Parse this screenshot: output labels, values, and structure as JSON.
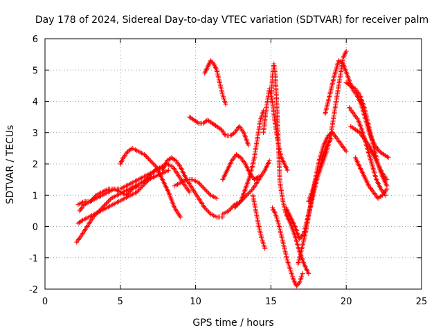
{
  "chart_data": {
    "type": "scatter",
    "title": "Day 178 of 2024, Sidereal Day-to-day VTEC variation (SDTVAR) for receiver palm",
    "xlabel": "GPS time / hours",
    "ylabel": "SDTVAR / TECUs",
    "xlim": [
      0,
      25
    ],
    "ylim": [
      -2,
      6
    ],
    "x_ticks": [
      "0",
      "5",
      "10",
      "15",
      "20",
      "25"
    ],
    "y_ticks": [
      "-2",
      "-1",
      "0",
      "1",
      "2",
      "3",
      "4",
      "5",
      "6"
    ],
    "grid": true,
    "marker": "+",
    "color": "#ff0000",
    "series": [
      {
        "x": [
          2.1,
          2.4,
          2.8,
          3.2,
          3.6,
          4.0,
          4.4,
          4.8,
          5.2,
          5.6,
          6.0,
          6.4,
          6.8,
          7.2
        ],
        "y": [
          -0.5,
          -0.3,
          0.0,
          0.3,
          0.5,
          0.7,
          0.9,
          1.0,
          1.1,
          1.2,
          1.3,
          1.4,
          1.5,
          1.6
        ]
      },
      {
        "x": [
          2.2,
          2.5,
          2.9,
          3.3,
          3.7,
          4.1,
          4.5,
          4.9,
          5.3,
          5.7,
          6.1,
          6.5,
          6.9,
          7.3,
          7.8,
          8.2
        ],
        "y": [
          0.1,
          0.2,
          0.3,
          0.4,
          0.5,
          0.6,
          0.7,
          0.8,
          0.9,
          1.0,
          1.1,
          1.3,
          1.5,
          1.6,
          1.7,
          1.8
        ]
      },
      {
        "x": [
          2.3,
          2.6,
          3.0,
          3.4,
          3.8,
          4.2,
          4.6,
          5.0,
          5.4,
          5.8,
          6.2,
          6.6,
          7.0,
          7.4,
          7.8
        ],
        "y": [
          0.5,
          0.7,
          0.8,
          0.9,
          1.0,
          1.1,
          1.2,
          1.2,
          1.3,
          1.4,
          1.5,
          1.6,
          1.7,
          1.8,
          1.9
        ]
      },
      {
        "x": [
          2.2,
          2.6,
          3.0,
          3.4,
          3.8,
          4.2,
          4.6,
          5.0,
          5.4,
          5.8,
          6.2
        ],
        "y": [
          0.7,
          0.8,
          0.8,
          1.0,
          1.1,
          1.2,
          1.2,
          1.1,
          1.0,
          1.2,
          1.3
        ]
      },
      {
        "x": [
          5.0,
          5.2,
          5.5,
          5.8,
          6.2,
          6.6,
          7.0,
          7.4,
          7.8,
          8.2,
          8.6,
          9.0
        ],
        "y": [
          2.0,
          2.2,
          2.4,
          2.5,
          2.4,
          2.3,
          2.1,
          1.9,
          1.5,
          1.1,
          0.6,
          0.3
        ]
      },
      {
        "x": [
          6.5,
          6.9,
          7.3,
          7.7,
          8.1,
          8.5,
          8.9,
          9.3,
          9.6
        ],
        "y": [
          1.4,
          1.6,
          1.8,
          1.9,
          2.0,
          1.9,
          1.6,
          1.3,
          1.1
        ]
      },
      {
        "x": [
          7.8,
          8.1,
          8.4,
          8.7,
          9.0,
          9.4,
          9.8,
          10.2,
          10.6,
          11.0,
          11.4,
          11.8
        ],
        "y": [
          1.8,
          2.1,
          2.2,
          2.1,
          1.9,
          1.5,
          1.2,
          0.9,
          0.6,
          0.4,
          0.3,
          0.3
        ]
      },
      {
        "x": [
          8.6,
          9.0,
          9.4,
          9.8,
          10.2,
          10.6,
          11.0,
          11.4
        ],
        "y": [
          1.3,
          1.4,
          1.5,
          1.5,
          1.4,
          1.2,
          1.0,
          0.9
        ]
      },
      {
        "x": [
          9.6,
          9.9,
          10.2,
          10.5,
          10.8,
          11.1,
          11.4,
          11.7,
          12.0,
          12.3,
          12.6,
          12.9,
          13.2,
          13.5
        ],
        "y": [
          3.5,
          3.4,
          3.3,
          3.3,
          3.4,
          3.3,
          3.2,
          3.1,
          2.9,
          2.9,
          3.0,
          3.2,
          3.0,
          2.6
        ]
      },
      {
        "x": [
          10.6,
          10.8,
          11.0,
          11.2,
          11.4,
          11.6,
          11.8,
          12.0
        ],
        "y": [
          4.9,
          5.1,
          5.3,
          5.2,
          5.0,
          4.6,
          4.2,
          3.9
        ]
      },
      {
        "x": [
          11.8,
          12.2,
          12.6,
          13.0,
          13.4,
          13.8,
          14.2,
          14.6,
          14.9
        ],
        "y": [
          0.4,
          0.5,
          0.7,
          0.8,
          1.0,
          1.2,
          1.5,
          1.8,
          2.1
        ]
      },
      {
        "x": [
          11.8,
          12.1,
          12.4,
          12.7,
          13.0,
          13.3,
          13.6,
          13.9,
          14.2
        ],
        "y": [
          1.5,
          1.8,
          2.1,
          2.3,
          2.2,
          2.0,
          1.7,
          1.5,
          1.6
        ]
      },
      {
        "x": [
          12.6,
          13.0,
          13.3,
          13.6,
          13.9,
          14.1,
          14.3,
          14.5
        ],
        "y": [
          0.6,
          0.8,
          1.2,
          1.6,
          2.2,
          2.8,
          3.4,
          3.7
        ]
      },
      {
        "x": [
          13.8,
          14.0,
          14.2,
          14.4,
          14.6
        ],
        "y": [
          1.0,
          0.5,
          0.0,
          -0.4,
          -0.7
        ]
      },
      {
        "x": [
          14.5,
          14.7,
          14.9,
          15.1,
          15.3,
          15.5,
          15.7,
          15.9,
          16.1
        ],
        "y": [
          3.0,
          3.8,
          4.4,
          4.0,
          3.2,
          2.6,
          2.2,
          2.0,
          1.8
        ]
      },
      {
        "x": [
          15.0,
          15.1,
          15.2,
          15.3,
          15.4,
          15.5,
          15.6,
          15.8,
          16.0,
          16.3,
          16.6,
          16.9,
          17.2,
          17.5
        ],
        "y": [
          4.0,
          4.8,
          5.2,
          4.8,
          3.8,
          2.6,
          1.4,
          0.8,
          0.4,
          0.1,
          -0.3,
          -0.8,
          -1.2,
          -1.5
        ]
      },
      {
        "x": [
          15.1,
          15.3,
          15.5,
          15.7,
          15.9,
          16.1,
          16.3,
          16.5,
          16.7,
          16.9,
          17.1
        ],
        "y": [
          0.6,
          0.4,
          0.1,
          -0.3,
          -0.7,
          -1.1,
          -1.4,
          -1.7,
          -1.9,
          -1.8,
          -1.5
        ]
      },
      {
        "x": [
          16.0,
          16.3,
          16.6,
          16.9,
          17.2,
          17.5,
          17.8,
          18.1,
          18.4,
          18.7,
          19.0
        ],
        "y": [
          0.6,
          0.3,
          0.0,
          -0.4,
          -0.2,
          0.4,
          1.0,
          1.6,
          2.2,
          2.6,
          2.8
        ]
      },
      {
        "x": [
          16.8,
          17.0,
          17.3,
          17.6,
          17.9,
          18.2,
          18.5,
          18.8,
          19.1,
          19.4,
          19.7,
          20.0
        ],
        "y": [
          -1.2,
          -0.8,
          -0.2,
          0.6,
          1.4,
          2.1,
          2.6,
          2.9,
          3.0,
          2.8,
          2.6,
          2.4
        ]
      },
      {
        "x": [
          17.5,
          17.8,
          18.1,
          18.4,
          18.7,
          19.0,
          19.2,
          19.4,
          19.6,
          19.8,
          20.0
        ],
        "y": [
          0.8,
          1.2,
          1.6,
          2.0,
          2.4,
          3.0,
          3.6,
          4.2,
          4.8,
          5.4,
          5.6
        ]
      },
      {
        "x": [
          18.6,
          18.9,
          19.2,
          19.5,
          19.8,
          20.1,
          20.4,
          20.7,
          21.0,
          21.3,
          21.6,
          21.9,
          22.2,
          22.5,
          22.8
        ],
        "y": [
          3.6,
          4.2,
          4.8,
          5.3,
          5.2,
          4.8,
          4.4,
          4.2,
          3.9,
          3.4,
          2.9,
          2.6,
          2.4,
          2.3,
          2.2
        ]
      },
      {
        "x": [
          20.0,
          20.3,
          20.6,
          20.9,
          21.2,
          21.5,
          21.8,
          22.1,
          22.4,
          22.7
        ],
        "y": [
          4.6,
          4.5,
          4.4,
          4.2,
          3.8,
          3.2,
          2.6,
          2.0,
          1.6,
          1.3
        ]
      },
      {
        "x": [
          20.2,
          20.5,
          20.8,
          21.1,
          21.4,
          21.7,
          22.0,
          22.3,
          22.6
        ],
        "y": [
          3.8,
          3.6,
          3.4,
          3.0,
          2.5,
          2.0,
          1.5,
          1.2,
          1.0
        ]
      },
      {
        "x": [
          20.6,
          20.9,
          21.2,
          21.5,
          21.8,
          22.1,
          22.4,
          22.7
        ],
        "y": [
          2.2,
          1.9,
          1.6,
          1.3,
          1.1,
          0.9,
          1.0,
          1.2
        ]
      },
      {
        "x": [
          20.3,
          20.6,
          20.9,
          21.2,
          21.5,
          21.8,
          22.1,
          22.4,
          22.7
        ],
        "y": [
          3.2,
          3.1,
          3.0,
          2.8,
          2.6,
          2.3,
          2.0,
          1.7,
          1.5
        ]
      }
    ]
  }
}
